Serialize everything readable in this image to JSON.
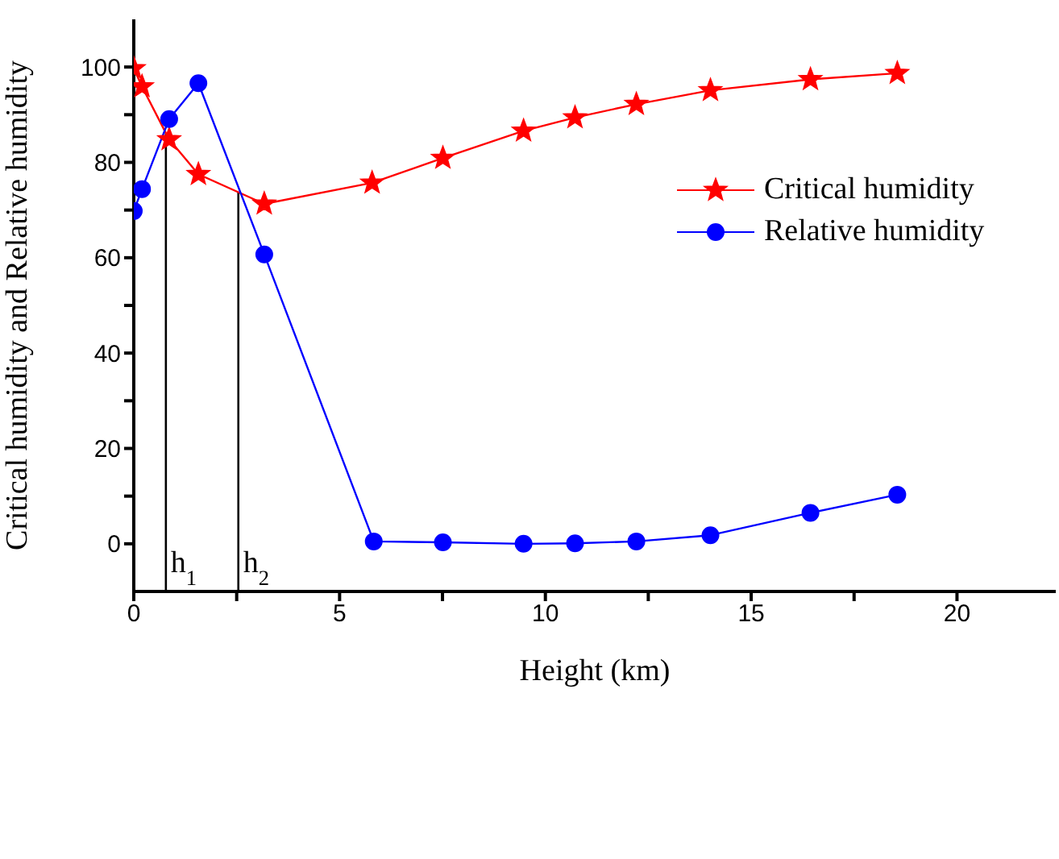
{
  "chart_data": {
    "type": "line",
    "xlabel": "Height (km)",
    "ylabel": "Critical humidity and Relative humidity",
    "xlim": [
      0,
      22.4
    ],
    "xticks": [
      0,
      {
        "value": 2.5,
        "label": null
      },
      5,
      {
        "value": 7.5,
        "label": null
      },
      10,
      {
        "value": 12.5,
        "label": null
      },
      15,
      {
        "value": 17.5,
        "label": null
      },
      20
    ],
    "ylim": [
      -10,
      110
    ],
    "yticks": [
      0,
      {
        "value": 10,
        "label": null
      },
      20,
      {
        "value": 30,
        "label": null
      },
      40,
      {
        "value": 50,
        "label": null
      },
      60,
      {
        "value": 70,
        "label": null
      },
      80,
      {
        "value": 90,
        "label": null
      },
      100
    ],
    "series": [
      {
        "name": "Critical humidity",
        "color": "#ff0000",
        "marker": "star",
        "x": [
          0,
          0.2,
          0.86,
          1.57,
          3.17,
          5.79,
          7.51,
          9.47,
          10.72,
          12.21,
          14.01,
          16.44,
          18.55
        ],
        "values": [
          99.7,
          95.9,
          84.8,
          77.5,
          71.3,
          75.7,
          80.9,
          86.6,
          89.4,
          92.2,
          95.1,
          97.4,
          98.7
        ]
      },
      {
        "name": "Relative humidity",
        "color": "#0000ff",
        "marker": "circle",
        "x": [
          0,
          0.2,
          0.86,
          1.57,
          3.17,
          5.83,
          7.51,
          9.47,
          10.72,
          12.21,
          14.01,
          16.44,
          18.55
        ],
        "values": [
          69.8,
          74.4,
          89.1,
          96.6,
          60.7,
          0.5,
          0.3,
          0,
          0.1,
          0.5,
          1.8,
          6.5,
          10.3
        ]
      }
    ],
    "ref_lines": [
      {
        "axis": "x",
        "value": 0.78,
        "label": "h$_{1}$",
        "color": "#000000"
      },
      {
        "axis": "x",
        "value": 2.54,
        "label": "h$_{2}$",
        "color": "#000000"
      }
    ],
    "legend": "top right"
  }
}
